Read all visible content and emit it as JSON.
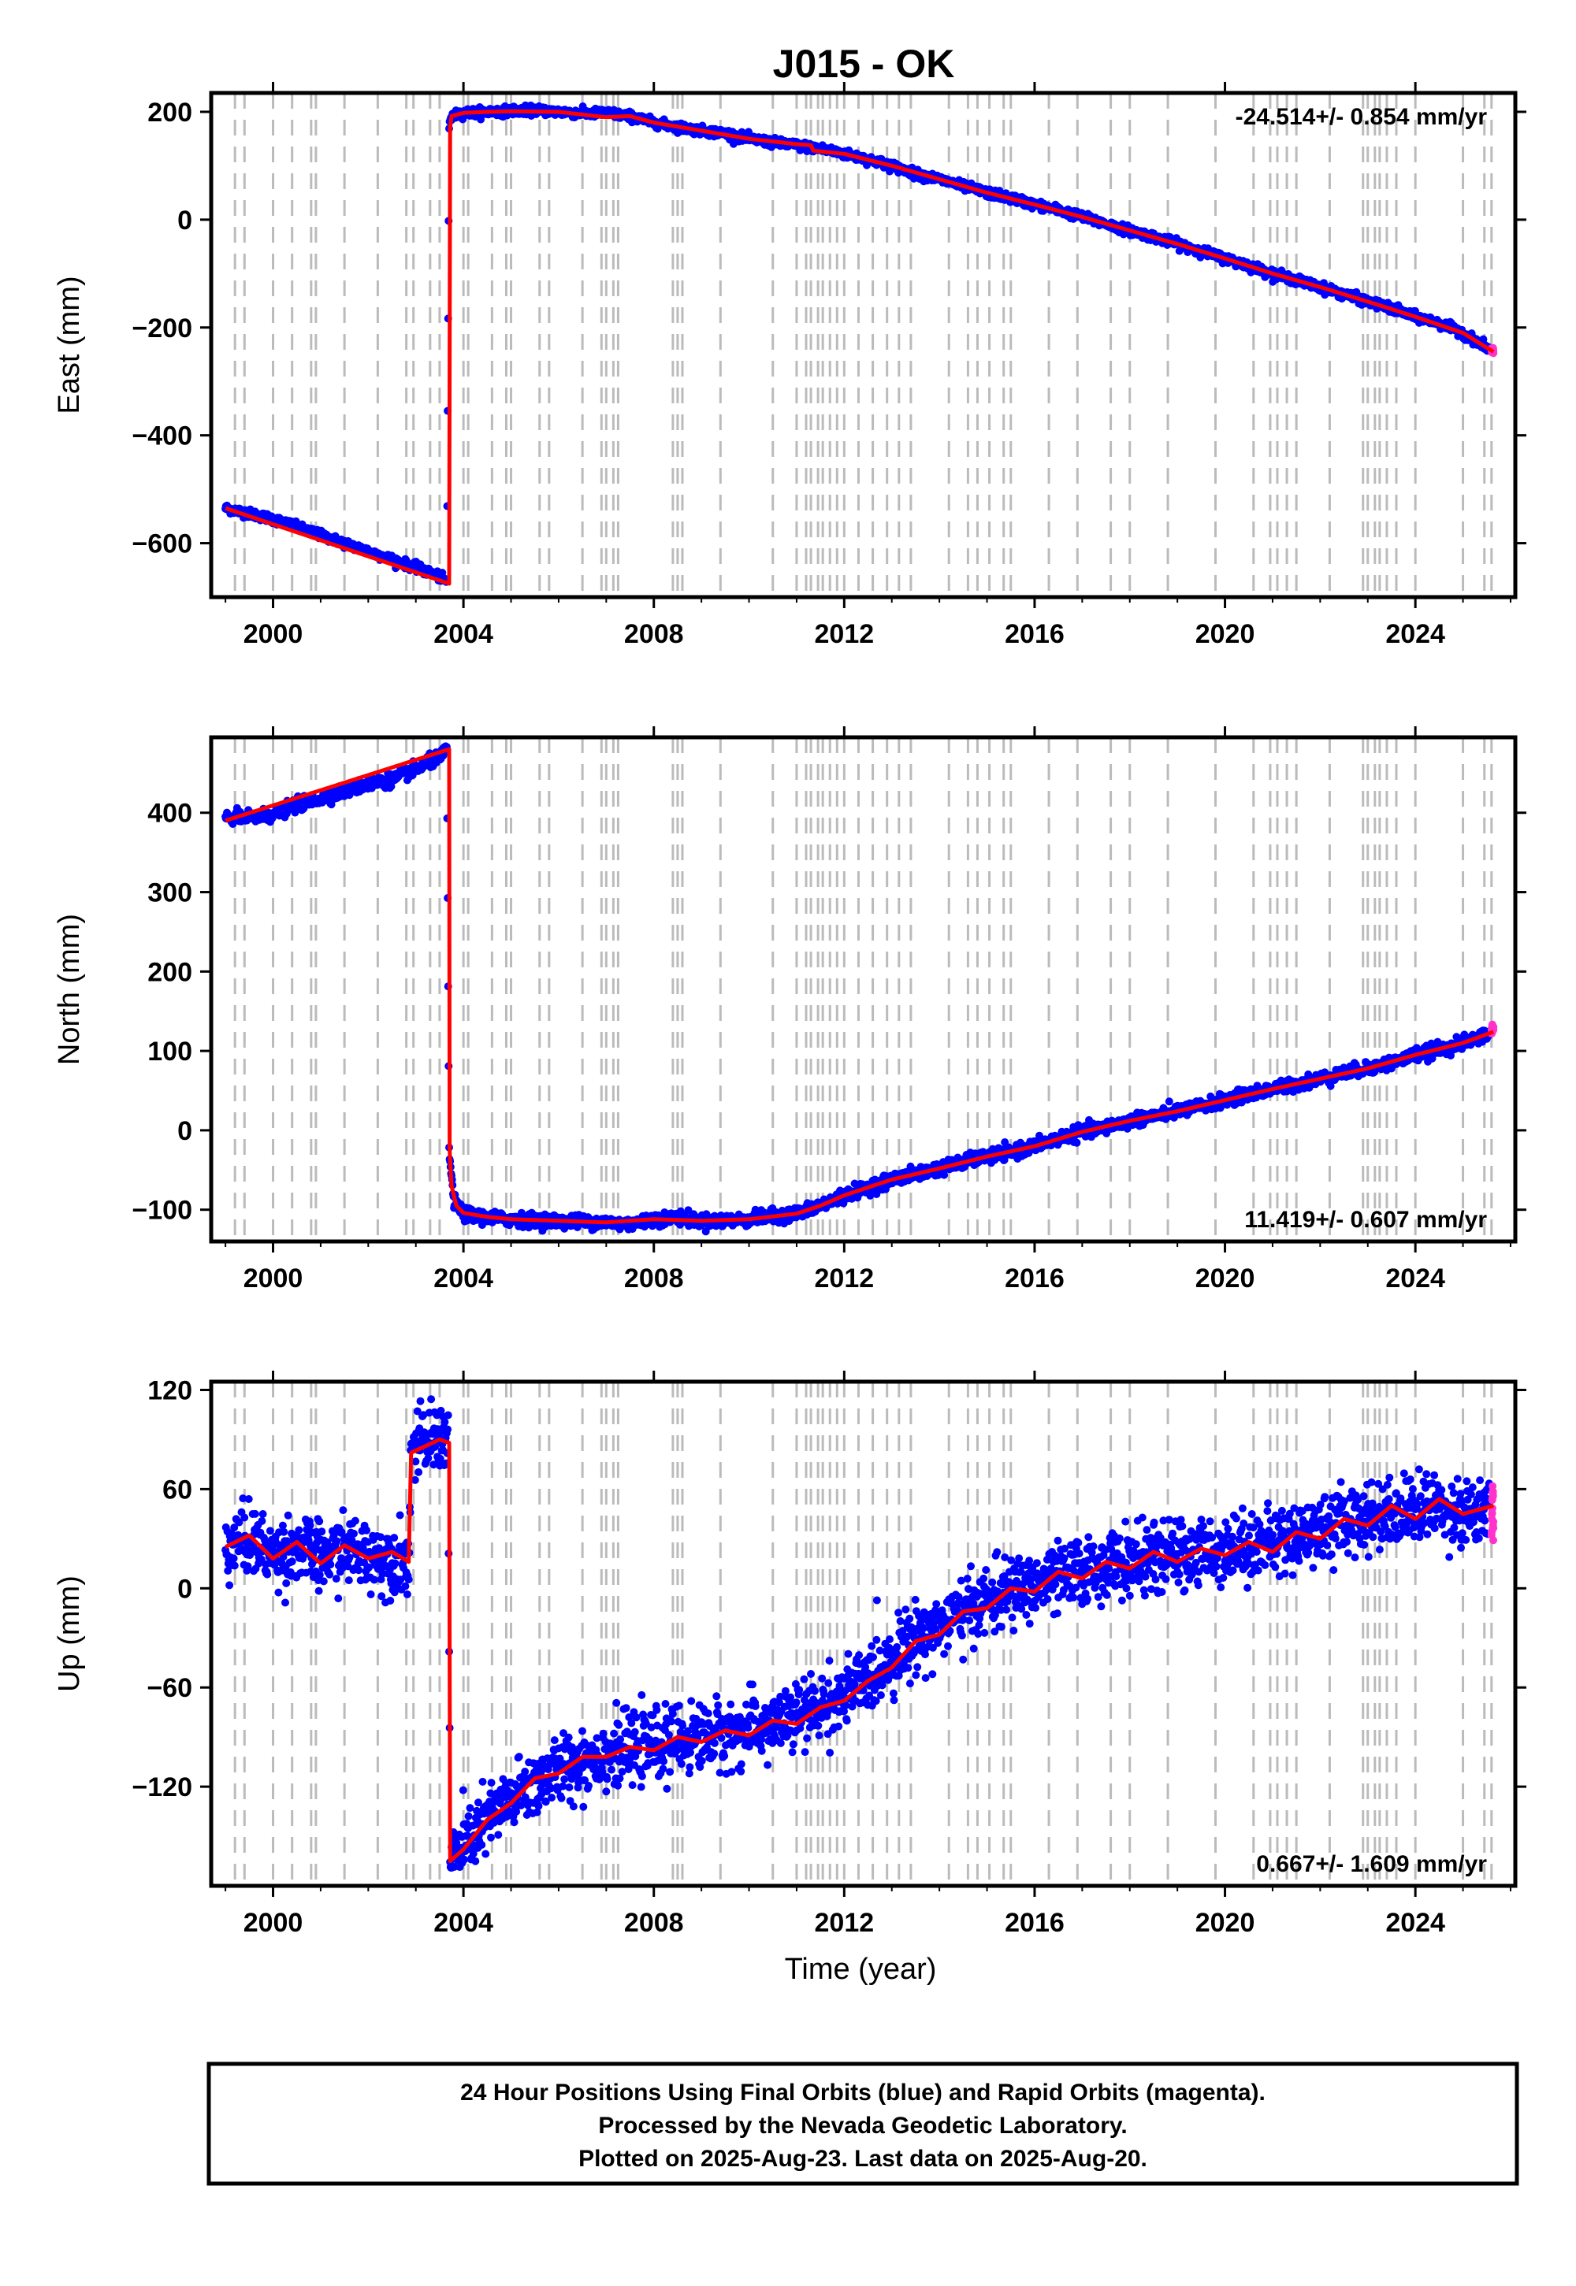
{
  "figure": {
    "title": "J015 - OK",
    "xlabel": "Time (year)"
  },
  "footer": {
    "lines": [
      "24 Hour Positions Using Final Orbits (blue) and Rapid Orbits (magenta).",
      "Processed by the Nevada Geodetic Laboratory.",
      "Plotted on 2025-Aug-23. Last data on 2025-Aug-20."
    ]
  },
  "colors": {
    "final_orbits": "#0000ff",
    "rapid_orbits": "#ff33cc",
    "model": "#ff0000",
    "event_lines": "#bbbbbb",
    "frame": "#000000"
  },
  "chart_data": [
    {
      "type": "scatter",
      "component": "east",
      "ylabel": "East (mm)",
      "rate_label": "-24.514+/- 0.854 mm/yr",
      "rate_position": "top-right",
      "xlim": [
        1998.7,
        2026.1
      ],
      "ylim": [
        -700,
        235
      ],
      "xticks": [
        2000,
        2004,
        2008,
        2012,
        2016,
        2020,
        2024
      ],
      "yticks": [
        -600,
        -400,
        -200,
        0,
        200
      ],
      "ytick_labels": [
        "−600",
        "−400",
        "−200",
        "0",
        "200"
      ],
      "series": [
        {
          "role": "final_orbits",
          "x": [
            1999.0,
            1999.5,
            2000.0,
            2000.5,
            2001.0,
            2001.5,
            2002.0,
            2002.5,
            2003.0,
            2003.5,
            2003.65,
            2003.7,
            2003.85,
            2004.0,
            2004.5,
            2005.0,
            2005.5,
            2006.0,
            2006.5,
            2007.0,
            2007.5,
            2008.0,
            2008.5,
            2009.0,
            2009.5,
            2010.0,
            2010.5,
            2011.0,
            2011.3,
            2011.5,
            2012.0,
            2012.5,
            2013.0,
            2013.5,
            2014.0,
            2014.5,
            2015.0,
            2015.5,
            2016.0,
            2016.5,
            2017.0,
            2017.5,
            2018.0,
            2018.5,
            2019.0,
            2019.5,
            2020.0,
            2020.5,
            2021.0,
            2021.5,
            2022.0,
            2022.5,
            2023.0,
            2023.5,
            2024.0,
            2024.5,
            2025.0,
            2025.55
          ],
          "y": [
            -535,
            -545,
            -555,
            -570,
            -585,
            -600,
            -615,
            -630,
            -645,
            -662,
            -672,
            185,
            195,
            198,
            200,
            202,
            203,
            200,
            197,
            198,
            192,
            180,
            172,
            165,
            160,
            150,
            143,
            138,
            134,
            132,
            122,
            112,
            100,
            85,
            75,
            62,
            50,
            40,
            28,
            18,
            5,
            -8,
            -20,
            -32,
            -45,
            -58,
            -72,
            -85,
            -100,
            -112,
            -125,
            -138,
            -152,
            -165,
            -180,
            -192,
            -210,
            -240
          ]
        },
        {
          "role": "rapid_orbits",
          "x": [
            2025.6,
            2025.62,
            2025.64
          ],
          "y": [
            -242,
            -244,
            -246
          ]
        },
        {
          "role": "model",
          "x": [
            1999.0,
            2003.7,
            2003.72,
            2003.75,
            2004.0,
            2004.5,
            2005.0,
            2006.0,
            2007.0,
            2007.5,
            2008.0,
            2009.0,
            2010.0,
            2011.0,
            2011.3,
            2011.35,
            2012.0,
            2013.0,
            2014.0,
            2015.0,
            2016.0,
            2017.0,
            2018.0,
            2019.0,
            2020.0,
            2021.0,
            2022.0,
            2023.0,
            2024.0,
            2025.0,
            2025.64
          ],
          "y": [
            -535,
            -675,
            170,
            192,
            198,
            200,
            201,
            200,
            190,
            192,
            180,
            165,
            150,
            140,
            138,
            128,
            122,
            100,
            75,
            50,
            28,
            5,
            -20,
            -45,
            -72,
            -100,
            -125,
            -152,
            -180,
            -210,
            -245
          ]
        }
      ]
    },
    {
      "type": "scatter",
      "component": "north",
      "ylabel": "North (mm)",
      "rate_label": "11.419+/- 0.607 mm/yr",
      "rate_position": "bottom-right",
      "xlim": [
        1998.7,
        2026.1
      ],
      "ylim": [
        -140,
        495
      ],
      "xticks": [
        2000,
        2004,
        2008,
        2012,
        2016,
        2020,
        2024
      ],
      "yticks": [
        -100,
        0,
        100,
        200,
        300,
        400
      ],
      "ytick_labels": [
        "−100",
        "0",
        "100",
        "200",
        "300",
        "400"
      ],
      "series": [
        {
          "role": "final_orbits",
          "x": [
            1999.0,
            1999.5,
            2000.0,
            2000.5,
            2001.0,
            2001.5,
            2002.0,
            2002.5,
            2003.0,
            2003.5,
            2003.65,
            2003.7,
            2003.8,
            2004.0,
            2004.5,
            2005.0,
            2005.5,
            2006.0,
            2006.5,
            2007.0,
            2007.5,
            2008.0,
            2008.5,
            2009.0,
            2009.5,
            2010.0,
            2010.5,
            2011.0,
            2011.5,
            2012.0,
            2012.5,
            2013.0,
            2013.5,
            2014.0,
            2014.5,
            2015.0,
            2015.5,
            2016.0,
            2016.5,
            2017.0,
            2017.5,
            2018.0,
            2018.5,
            2019.0,
            2019.5,
            2020.0,
            2020.5,
            2021.0,
            2021.5,
            2022.0,
            2022.5,
            2023.0,
            2023.5,
            2024.0,
            2024.5,
            2025.0,
            2025.55
          ],
          "y": [
            395,
            393,
            398,
            410,
            418,
            428,
            436,
            442,
            455,
            470,
            478,
            -30,
            -90,
            -105,
            -110,
            -112,
            -113,
            -114,
            -115,
            -116,
            -118,
            -112,
            -110,
            -114,
            -114,
            -112,
            -108,
            -105,
            -95,
            -82,
            -72,
            -62,
            -55,
            -48,
            -40,
            -33,
            -28,
            -20,
            -10,
            -2,
            4,
            12,
            18,
            24,
            30,
            38,
            45,
            52,
            58,
            65,
            72,
            78,
            85,
            95,
            102,
            110,
            122
          ]
        },
        {
          "role": "rapid_orbits",
          "x": [
            2025.6,
            2025.62,
            2025.64
          ],
          "y": [
            124,
            128,
            126
          ]
        },
        {
          "role": "model",
          "x": [
            1999.0,
            2003.7,
            2003.71,
            2003.75,
            2003.85,
            2004.0,
            2004.5,
            2005.0,
            2006.0,
            2007.0,
            2008.0,
            2009.0,
            2010.0,
            2011.0,
            2011.5,
            2012.0,
            2013.0,
            2014.0,
            2015.0,
            2016.0,
            2017.0,
            2018.0,
            2019.0,
            2020.0,
            2021.0,
            2022.0,
            2023.0,
            2024.0,
            2025.0,
            2025.64
          ],
          "y": [
            390,
            480,
            -25,
            -70,
            -95,
            -104,
            -109,
            -112,
            -114,
            -116,
            -112,
            -114,
            -112,
            -105,
            -95,
            -82,
            -62,
            -48,
            -33,
            -20,
            -2,
            12,
            24,
            38,
            52,
            65,
            78,
            95,
            110,
            124
          ]
        }
      ]
    },
    {
      "type": "scatter",
      "component": "up",
      "ylabel": "Up (mm)",
      "rate_label": "0.667+/- 1.609 mm/yr",
      "rate_position": "bottom-right",
      "xlim": [
        1998.7,
        2026.1
      ],
      "ylim": [
        -180,
        125
      ],
      "xticks": [
        2000,
        2004,
        2008,
        2012,
        2016,
        2020,
        2024
      ],
      "yticks": [
        -120,
        -60,
        0,
        60,
        120
      ],
      "ytick_labels": [
        "−120",
        "−60",
        "0",
        "60",
        "120"
      ],
      "series": [
        {
          "role": "final_orbits",
          "x": [
            1999.0,
            1999.5,
            2000.0,
            2000.5,
            2001.0,
            2001.5,
            2002.0,
            2002.5,
            2002.85,
            2002.9,
            2003.2,
            2003.5,
            2003.68,
            2003.72,
            2004.0,
            2004.5,
            2005.0,
            2005.5,
            2006.0,
            2006.5,
            2007.0,
            2007.5,
            2008.0,
            2008.5,
            2009.0,
            2009.5,
            2010.0,
            2010.5,
            2011.0,
            2011.5,
            2012.0,
            2012.5,
            2013.0,
            2013.5,
            2014.0,
            2014.5,
            2015.0,
            2015.5,
            2016.0,
            2016.5,
            2017.0,
            2017.5,
            2018.0,
            2018.5,
            2019.0,
            2019.5,
            2020.0,
            2020.5,
            2021.0,
            2021.5,
            2022.0,
            2022.5,
            2023.0,
            2023.5,
            2024.0,
            2024.5,
            2025.0,
            2025.55
          ],
          "y": [
            25,
            30,
            20,
            25,
            18,
            24,
            20,
            18,
            16,
            85,
            88,
            92,
            90,
            -165,
            -155,
            -140,
            -128,
            -118,
            -110,
            -105,
            -100,
            -98,
            -95,
            -92,
            -90,
            -88,
            -86,
            -82,
            -78,
            -72,
            -65,
            -55,
            -42,
            -30,
            -22,
            -15,
            -8,
            -2,
            2,
            6,
            10,
            14,
            16,
            18,
            20,
            22,
            24,
            26,
            28,
            32,
            36,
            40,
            44,
            46,
            48,
            50,
            46,
            44
          ]
        },
        {
          "role": "rapid_orbits",
          "x": [
            2025.6,
            2025.62,
            2025.64
          ],
          "y": [
            45,
            50,
            40
          ]
        },
        {
          "role": "model",
          "x": [
            1999.0,
            1999.5,
            2000.0,
            2000.5,
            2001.0,
            2001.5,
            2002.0,
            2002.5,
            2002.85,
            2002.9,
            2003.2,
            2003.5,
            2003.7,
            2003.72,
            2004.0,
            2004.5,
            2005.0,
            2005.5,
            2006.0,
            2006.5,
            2007.0,
            2007.5,
            2008.0,
            2008.5,
            2009.0,
            2009.5,
            2010.0,
            2010.5,
            2011.0,
            2011.5,
            2012.0,
            2012.5,
            2013.0,
            2013.5,
            2014.0,
            2014.5,
            2015.0,
            2015.5,
            2016.0,
            2016.5,
            2017.0,
            2017.5,
            2018.0,
            2018.5,
            2019.0,
            2019.5,
            2020.0,
            2020.5,
            2021.0,
            2021.5,
            2022.0,
            2022.5,
            2023.0,
            2023.5,
            2024.0,
            2024.5,
            2025.0,
            2025.64
          ],
          "y": [
            25,
            32,
            18,
            28,
            15,
            26,
            18,
            22,
            16,
            82,
            86,
            90,
            88,
            -165,
            -158,
            -140,
            -130,
            -115,
            -112,
            -102,
            -102,
            -96,
            -98,
            -90,
            -93,
            -86,
            -89,
            -80,
            -82,
            -72,
            -68,
            -56,
            -48,
            -32,
            -28,
            -14,
            -12,
            0,
            -2,
            10,
            6,
            16,
            12,
            22,
            16,
            24,
            20,
            28,
            22,
            34,
            30,
            42,
            38,
            50,
            42,
            54,
            45,
            50
          ]
        }
      ]
    }
  ],
  "event_lines": [
    1999.2,
    1999.4,
    2000.0,
    2000.4,
    2000.8,
    2000.9,
    2001.5,
    2002.2,
    2002.8,
    2002.95,
    2003.3,
    2003.5,
    2004.0,
    2004.1,
    2004.6,
    2004.9,
    2005.0,
    2005.6,
    2005.8,
    2006.5,
    2006.9,
    2007.0,
    2007.15,
    2007.25,
    2008.4,
    2008.5,
    2008.6,
    2009.4,
    2010.5,
    2011.0,
    2011.2,
    2011.3,
    2011.45,
    2011.55,
    2011.7,
    2011.85,
    2012.0,
    2012.3,
    2012.6,
    2012.9,
    2013.15,
    2013.4,
    2014.2,
    2014.6,
    2014.8,
    2015.05,
    2015.35,
    2015.5,
    2016.3,
    2016.9,
    2017.6,
    2018.0,
    2018.8,
    2019.8,
    2020.6,
    2020.95,
    2021.1,
    2021.3,
    2021.5,
    2022.2,
    2022.9,
    2023.0,
    2023.15,
    2023.25,
    2023.4,
    2023.6,
    2024.0,
    2025.0,
    2025.45,
    2025.6
  ],
  "yaxis_minus": "−"
}
